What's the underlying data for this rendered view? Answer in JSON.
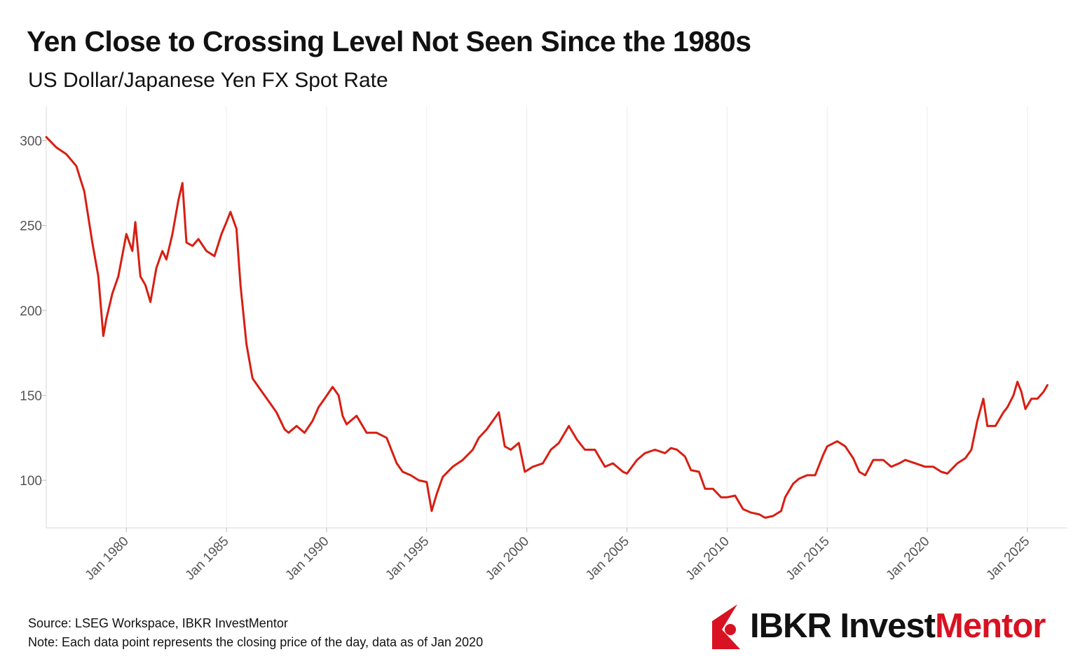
{
  "title": "Yen Close to Crossing Level Not Seen Since the 1980s",
  "subtitle": "US Dollar/Japanese Yen FX Spot Rate",
  "source": "Source: LSEG Workspace, IBKR InvestMentor",
  "note": "Note: Each data point represents the closing price of the day, data as of Jan 2020",
  "logo": {
    "part1": "IBKR Invest",
    "part2": "Mentor",
    "mark": "ibkr-logo-icon"
  },
  "colors": {
    "line": "#d81e12",
    "grid": "#ececec",
    "brand": "#d81222"
  },
  "chart_data": {
    "type": "line",
    "title": "Yen Close to Crossing Level Not Seen Since the 1980s",
    "subtitle": "US Dollar/Japanese Yen FX Spot Rate",
    "xlabel": "",
    "ylabel": "",
    "xlim": [
      1976.0,
      2027.0
    ],
    "ylim": [
      72,
      320
    ],
    "yticks": [
      100,
      150,
      200,
      250,
      300
    ],
    "ytick_labels": [
      "100",
      "150",
      "200",
      "250",
      "300"
    ],
    "xticks": [
      1980,
      1985,
      1990,
      1995,
      2000,
      2005,
      2010,
      2015,
      2020,
      2025
    ],
    "xtick_labels": [
      "Jan 1980",
      "Jan 1985",
      "Jan 1990",
      "Jan 1995",
      "Jan 2000",
      "Jan 2005",
      "Jan 2010",
      "Jan 2015",
      "Jan 2020",
      "Jan 2025"
    ],
    "grid": true,
    "legend": "none",
    "series": [
      {
        "name": "USD/JPY",
        "x": [
          1976.0,
          1976.5,
          1977.0,
          1977.5,
          1977.9,
          1978.3,
          1978.6,
          1978.85,
          1979.0,
          1979.3,
          1979.6,
          1980.0,
          1980.3,
          1980.45,
          1980.7,
          1980.95,
          1981.2,
          1981.5,
          1981.8,
          1982.0,
          1982.3,
          1982.6,
          1982.8,
          1983.0,
          1983.3,
          1983.6,
          1984.0,
          1984.4,
          1984.75,
          1985.0,
          1985.2,
          1985.5,
          1985.7,
          1986.0,
          1986.3,
          1986.6,
          1986.9,
          1987.2,
          1987.5,
          1987.9,
          1988.1,
          1988.5,
          1988.9,
          1989.3,
          1989.6,
          1989.9,
          1990.3,
          1990.6,
          1990.8,
          1991.0,
          1991.5,
          1992.0,
          1992.5,
          1993.0,
          1993.5,
          1993.8,
          1994.2,
          1994.6,
          1995.0,
          1995.25,
          1995.5,
          1995.8,
          1996.3,
          1996.8,
          1997.3,
          1997.6,
          1998.0,
          1998.6,
          1998.9,
          1999.2,
          1999.6,
          1999.9,
          2000.3,
          2000.8,
          2001.2,
          2001.6,
          2002.1,
          2002.5,
          2002.9,
          2003.4,
          2003.9,
          2004.3,
          2004.8,
          2005.0,
          2005.5,
          2005.9,
          2006.4,
          2006.9,
          2007.2,
          2007.5,
          2007.9,
          2008.2,
          2008.6,
          2008.9,
          2009.3,
          2009.7,
          2010.0,
          2010.4,
          2010.8,
          2011.2,
          2011.6,
          2011.9,
          2012.3,
          2012.7,
          2012.9,
          2013.3,
          2013.6,
          2014.0,
          2014.4,
          2014.8,
          2015.0,
          2015.5,
          2015.9,
          2016.3,
          2016.6,
          2016.9,
          2017.3,
          2017.8,
          2018.2,
          2018.6,
          2018.9,
          2019.4,
          2019.9,
          2020.3,
          2020.7,
          2021.0,
          2021.5,
          2021.9,
          2022.2,
          2022.5,
          2022.8,
          2023.0,
          2023.4,
          2023.8,
          2024.0,
          2024.3,
          2024.5,
          2024.7,
          2024.9,
          2025.2,
          2025.5,
          2025.8,
          2026.0
        ],
        "values": [
          302,
          296,
          292,
          285,
          270,
          240,
          220,
          185,
          195,
          210,
          220,
          245,
          235,
          252,
          220,
          215,
          205,
          225,
          235,
          230,
          245,
          265,
          275,
          240,
          238,
          242,
          235,
          232,
          245,
          252,
          258,
          248,
          215,
          180,
          160,
          155,
          150,
          145,
          140,
          130,
          128,
          132,
          128,
          135,
          143,
          148,
          155,
          150,
          138,
          133,
          138,
          128,
          128,
          125,
          110,
          105,
          103,
          100,
          99,
          82,
          92,
          102,
          108,
          112,
          118,
          125,
          130,
          140,
          120,
          118,
          122,
          105,
          108,
          110,
          118,
          122,
          132,
          124,
          118,
          118,
          108,
          110,
          105,
          104,
          112,
          116,
          118,
          116,
          119,
          118,
          114,
          106,
          105,
          95,
          95,
          90,
          90,
          91,
          83,
          81,
          80,
          78,
          79,
          82,
          90,
          98,
          101,
          103,
          103,
          115,
          120,
          123,
          120,
          113,
          105,
          103,
          112,
          112,
          108,
          110,
          112,
          110,
          108,
          108,
          105,
          104,
          110,
          113,
          118,
          135,
          148,
          132,
          132,
          140,
          143,
          150,
          158,
          152,
          142,
          148,
          148,
          152,
          156
        ]
      }
    ]
  }
}
